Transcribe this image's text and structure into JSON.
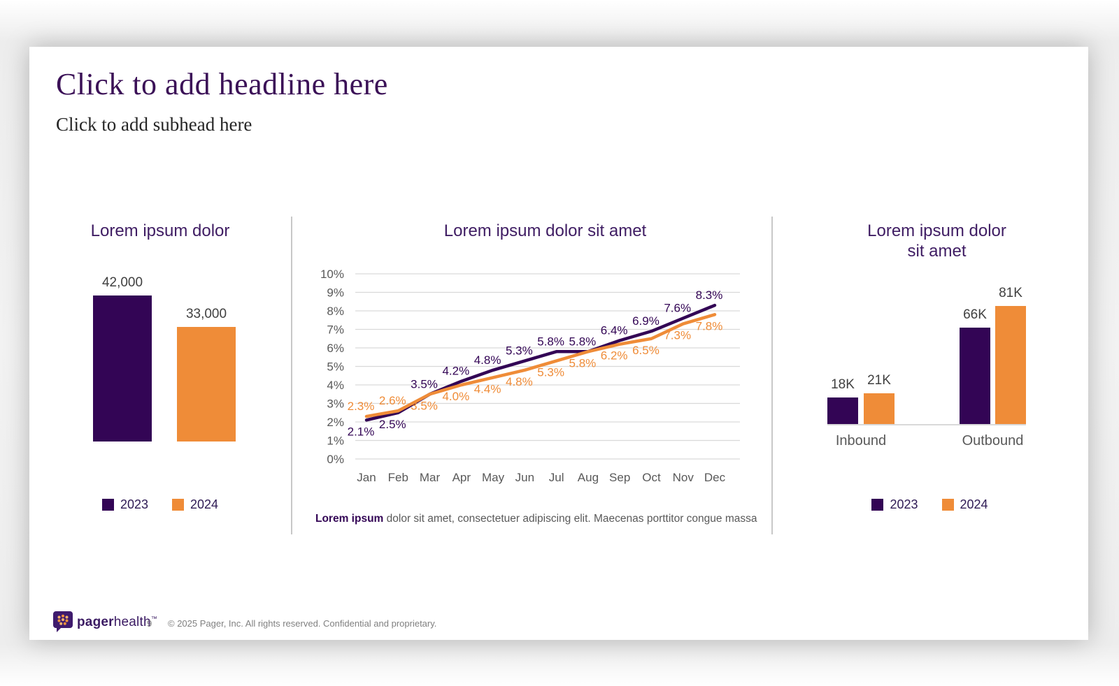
{
  "slide": {
    "headline": "Click to add headline here",
    "subhead": "Click to add subhead here"
  },
  "colors": {
    "purple": "#330555",
    "orange": "#ef8c38",
    "title_purple": "#3f1d63",
    "gray_text": "#595959",
    "value_text": "#404040",
    "gridline": "#d9d9d9",
    "divider": "#c8c8c8"
  },
  "legend": {
    "items": [
      {
        "label": "2023",
        "color": "#330555"
      },
      {
        "label": "2024",
        "color": "#ef8c38"
      }
    ]
  },
  "chart_data": [
    {
      "type": "bar",
      "title": "Lorem ipsum dolor",
      "categories": [
        "2023",
        "2024"
      ],
      "values": [
        42000,
        33000
      ],
      "value_labels": [
        "42,000",
        "33,000"
      ],
      "bar_colors": [
        "#330555",
        "#ef8c38"
      ],
      "legend_position": "bottom"
    },
    {
      "type": "line",
      "title": "Lorem ipsum dolor sit amet",
      "x": [
        "Jan",
        "Feb",
        "Mar",
        "Apr",
        "May",
        "Jun",
        "Jul",
        "Aug",
        "Sep",
        "Oct",
        "Nov",
        "Dec"
      ],
      "series": [
        {
          "name": "2023",
          "color": "#330555",
          "values": [
            2.1,
            2.5,
            3.5,
            4.2,
            4.8,
            5.3,
            5.8,
            5.8,
            6.4,
            6.9,
            7.6,
            8.3
          ],
          "labels": [
            "2.1%",
            "2.5%",
            "3.5%",
            "4.2%",
            "4.8%",
            "5.3%",
            "5.8%",
            "5.8%",
            "6.4%",
            "6.9%",
            "7.6%",
            "8.3%"
          ]
        },
        {
          "name": "2024",
          "color": "#ef8c38",
          "values": [
            2.3,
            2.6,
            3.5,
            4.0,
            4.4,
            4.8,
            5.3,
            5.8,
            6.2,
            6.5,
            7.3,
            7.8
          ],
          "labels": [
            "2.3%",
            "2.6%",
            "3.5%",
            "4.0%",
            "4.4%",
            "4.8%",
            "5.3%",
            "5.8%",
            "6.2%",
            "6.5%",
            "7.3%",
            "7.8%"
          ]
        }
      ],
      "ylim": [
        0,
        10
      ],
      "yticks": [
        "0%",
        "1%",
        "2%",
        "3%",
        "4%",
        "5%",
        "6%",
        "7%",
        "8%",
        "9%",
        "10%"
      ],
      "grid": true,
      "legend_position": "none",
      "caption": {
        "bold": "Lorem ipsum",
        "rest": " dolor sit amet, consectetuer adipiscing elit. Maecenas porttitor congue massa"
      }
    },
    {
      "type": "bar",
      "title_lines": [
        "Lorem ipsum dolor",
        "sit amet"
      ],
      "categories": [
        "Inbound",
        "Outbound"
      ],
      "series": [
        {
          "name": "2023",
          "color": "#330555",
          "values": [
            18,
            66
          ],
          "labels": [
            "18K",
            "66K"
          ]
        },
        {
          "name": "2024",
          "color": "#ef8c38",
          "values": [
            21,
            81
          ],
          "labels": [
            "21K",
            "81K"
          ]
        }
      ],
      "legend_position": "bottom"
    }
  ],
  "footer": {
    "brand_bold": "pager",
    "brand_light": "health",
    "trademark": "™",
    "page_number": "9",
    "copyright": "© 2025 Pager, Inc. All rights reserved. Confidential and proprietary."
  }
}
